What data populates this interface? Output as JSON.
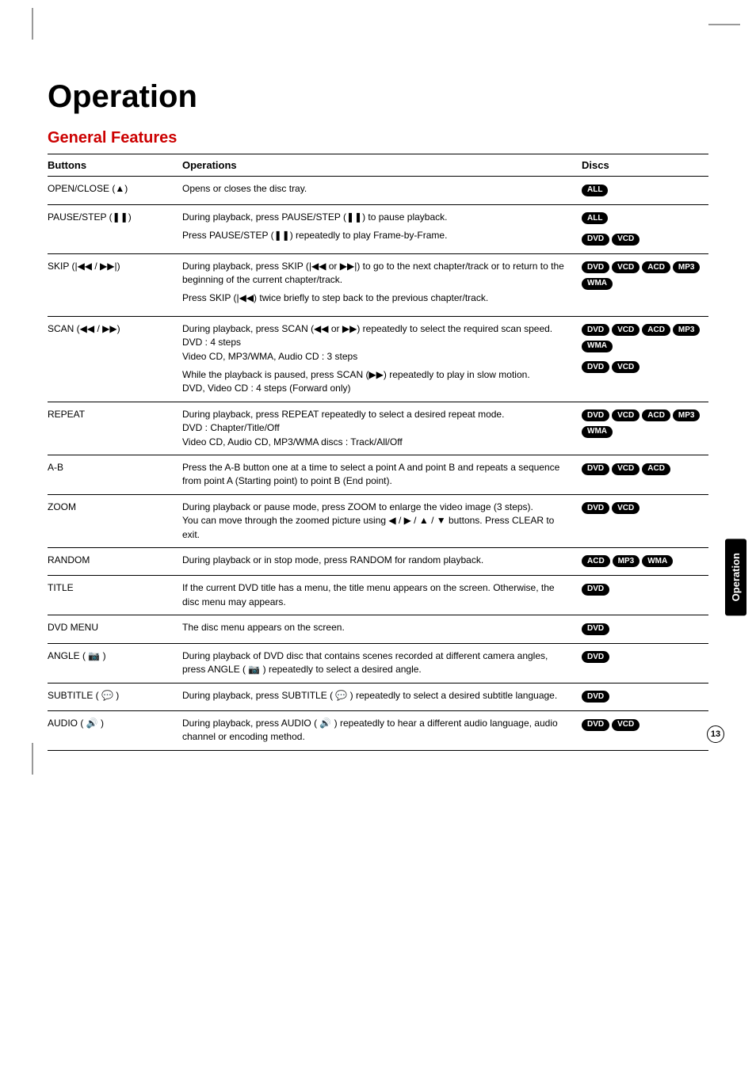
{
  "page": {
    "title": "Operation",
    "subtitle": "General Features",
    "side_tab": "Operation",
    "page_number": "13",
    "colors": {
      "subtitle": "#cc0000",
      "text": "#000000",
      "pill_bg": "#000000",
      "pill_fg": "#ffffff",
      "background": "#ffffff"
    }
  },
  "headers": {
    "buttons": "Buttons",
    "operations": "Operations",
    "discs": "Discs"
  },
  "rows": [
    {
      "button": "OPEN/CLOSE (▲)",
      "ops": [
        {
          "text": "Opens or closes the disc tray.",
          "discs": [
            "ALL"
          ]
        }
      ]
    },
    {
      "button": "PAUSE/STEP (❚❚)",
      "ops": [
        {
          "text": "During playback, press PAUSE/STEP (❚❚) to pause playback.",
          "discs": [
            "ALL"
          ]
        },
        {
          "text": "Press PAUSE/STEP (❚❚) repeatedly to play Frame-by-Frame.",
          "discs": [
            "DVD",
            "VCD"
          ]
        }
      ]
    },
    {
      "button": "SKIP (|◀◀ / ▶▶|)",
      "ops": [
        {
          "text": "During playback, press SKIP (|◀◀ or ▶▶|) to go to the next chapter/track or to return to the beginning of the current chapter/track.",
          "discs": [
            "DVD",
            "VCD",
            "ACD",
            "MP3",
            "WMA"
          ]
        },
        {
          "text": "Press SKIP (|◀◀) twice briefly to step back to the previous chapter/track.",
          "discs": []
        }
      ]
    },
    {
      "button": "SCAN (◀◀ / ▶▶)",
      "ops": [
        {
          "text": "During playback, press SCAN (◀◀ or ▶▶) repeatedly to select the required scan speed.\nDVD : 4 steps\nVideo CD, MP3/WMA, Audio CD : 3 steps",
          "discs": [
            "DVD",
            "VCD",
            "ACD",
            "MP3",
            "WMA"
          ]
        },
        {
          "text": "While the playback is paused, press SCAN (▶▶) repeatedly to play in slow motion.\nDVD, Video CD : 4 steps (Forward only)",
          "discs": [
            "DVD",
            "VCD"
          ]
        }
      ]
    },
    {
      "button": "REPEAT",
      "ops": [
        {
          "text": "During playback, press REPEAT repeatedly to select a desired repeat mode.\nDVD : Chapter/Title/Off\nVideo CD, Audio CD, MP3/WMA discs : Track/All/Off",
          "discs": [
            "DVD",
            "VCD",
            "ACD",
            "MP3",
            "WMA"
          ]
        }
      ]
    },
    {
      "button": "A-B",
      "ops": [
        {
          "text": "Press the A-B button one at a time to select a point A and point B and repeats a sequence from point A (Starting point) to point B (End point).",
          "discs": [
            "DVD",
            "VCD",
            "ACD"
          ]
        }
      ]
    },
    {
      "button": "ZOOM",
      "ops": [
        {
          "text": "During playback or pause mode, press ZOOM to enlarge the video image (3 steps).\nYou can move through the zoomed picture using ◀ / ▶ / ▲ / ▼ buttons. Press CLEAR to exit.",
          "discs": [
            "DVD",
            "VCD"
          ]
        }
      ]
    },
    {
      "button": "RANDOM",
      "ops": [
        {
          "text": "During playback or in stop mode, press RANDOM for random playback.",
          "discs": [
            "ACD",
            "MP3",
            "WMA"
          ]
        }
      ]
    },
    {
      "button": "TITLE",
      "ops": [
        {
          "text": "If the current DVD title has a menu, the title menu appears on the screen. Otherwise, the disc menu may appears.",
          "discs": [
            "DVD"
          ]
        }
      ]
    },
    {
      "button": "DVD MENU",
      "ops": [
        {
          "text": "The disc menu appears on the screen.",
          "discs": [
            "DVD"
          ]
        }
      ]
    },
    {
      "button": "ANGLE ( 📷 )",
      "ops": [
        {
          "text": "During playback of DVD disc that contains scenes recorded at different camera angles, press ANGLE ( 📷 ) repeatedly to select a desired angle.",
          "discs": [
            "DVD"
          ]
        }
      ]
    },
    {
      "button": "SUBTITLE ( 💬 )",
      "ops": [
        {
          "text": "During playback, press SUBTITLE ( 💬 ) repeatedly to select a desired subtitle language.",
          "discs": [
            "DVD"
          ]
        }
      ]
    },
    {
      "button": "AUDIO ( 🔊 )",
      "ops": [
        {
          "text": "During playback, press AUDIO ( 🔊 ) repeatedly to hear a different audio language, audio channel or encoding method.",
          "discs": [
            "DVD",
            "VCD"
          ]
        }
      ]
    }
  ]
}
